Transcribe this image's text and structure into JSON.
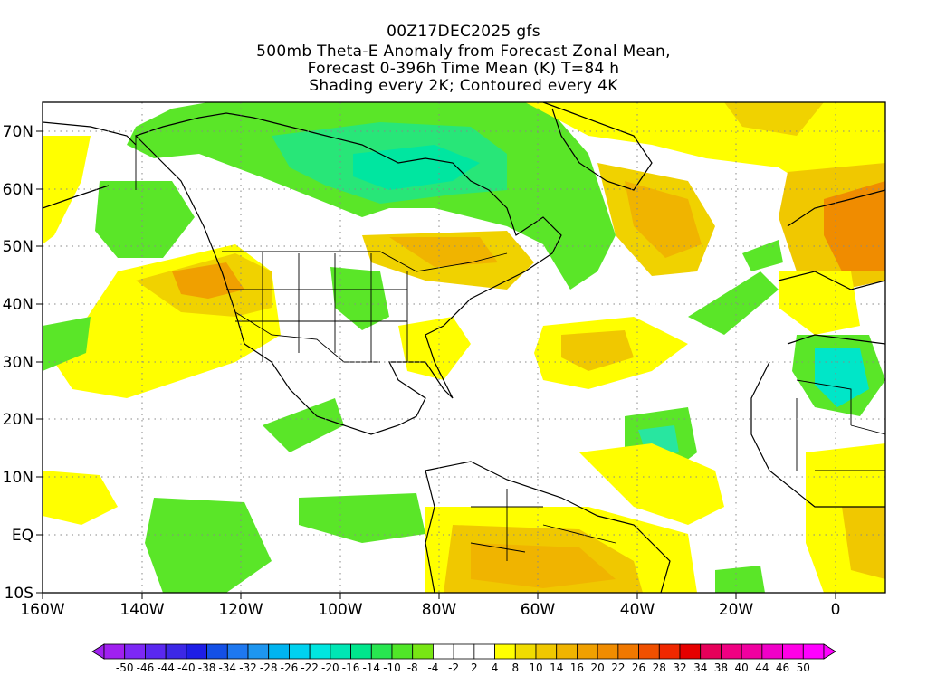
{
  "titles": {
    "line1": "00Z17DEC2025 gfs",
    "line2": "500mb Theta-E Anomaly from Forecast Zonal Mean,",
    "line3": "Forecast 0-396h Time Mean (K) T=84 h",
    "line4": "Shading every 2K; Contoured every 4K"
  },
  "map": {
    "lat_labels": [
      "70N",
      "60N",
      "50N",
      "40N",
      "30N",
      "20N",
      "10N",
      "EQ",
      "10S"
    ],
    "lon_labels": [
      "160W",
      "140W",
      "120W",
      "100W",
      "80W",
      "60W",
      "40W",
      "20W",
      "0"
    ],
    "extent": {
      "lon_min": -160,
      "lon_max": 10,
      "lat_min": -10,
      "lat_max": 75
    },
    "grid": "dotted"
  },
  "colorbar": {
    "labels": [
      "-50",
      "-46",
      "-44",
      "-40",
      "-38",
      "-34",
      "-32",
      "-28",
      "-26",
      "-22",
      "-20",
      "-16",
      "-14",
      "-10",
      "-8",
      "-4",
      "-2",
      "2",
      "4",
      "8",
      "10",
      "14",
      "16",
      "20",
      "22",
      "26",
      "28",
      "32",
      "34",
      "38",
      "40",
      "44",
      "46",
      "50"
    ],
    "colors": [
      "#a020f0",
      "#7d28f5",
      "#5a28f0",
      "#3c28e6",
      "#1e1ee6",
      "#1450e6",
      "#1e78f0",
      "#1e96f0",
      "#00b4f0",
      "#00d2f0",
      "#00e6e0",
      "#00e6b4",
      "#00e68c",
      "#28e650",
      "#50e628",
      "#78e614",
      "#ffffff",
      "#ffffff",
      "#ffffff",
      "#ffff00",
      "#f0dc00",
      "#f0c800",
      "#f0b400",
      "#f0a000",
      "#f08c00",
      "#f07800",
      "#f05000",
      "#f02800",
      "#e60000",
      "#e6005a",
      "#f00082",
      "#f000a0",
      "#f000c8",
      "#ff00e6",
      "#ff00ff"
    ]
  },
  "colors": {
    "green": "#5ae628",
    "light_green": "#64e63c",
    "teal": "#00e68c",
    "cyan": "#00e6c8",
    "yellow": "#ffff00",
    "gold": "#f0d200",
    "orange": "#f0a000",
    "dark_orange": "#f07800"
  }
}
